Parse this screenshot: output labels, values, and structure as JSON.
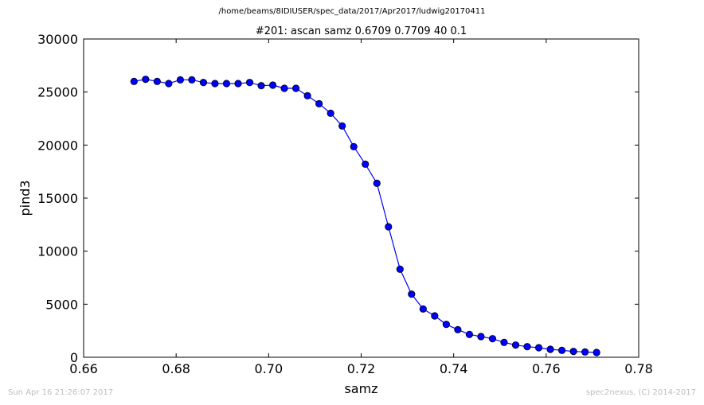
{
  "header": {
    "path": "/home/beams/8IDIUSER/spec_data/2017/Apr2017/ludwig20170411"
  },
  "footer": {
    "timestamp": "Sun Apr 16 21:26:07 2017",
    "credit": "spec2nexus, (C) 2014-2017"
  },
  "chart_data": {
    "type": "line",
    "title": "#201: ascan  samz 0.6709 0.7709  40 0.1",
    "xlabel": "samz",
    "ylabel": "pind3",
    "xlim": [
      0.66,
      0.78
    ],
    "ylim": [
      0,
      30000
    ],
    "xticks": [
      0.66,
      0.68,
      0.7,
      0.72,
      0.74,
      0.76,
      0.78
    ],
    "yticks": [
      0,
      5000,
      10000,
      15000,
      20000,
      25000,
      30000
    ],
    "grid": false,
    "marker": "circle",
    "color": "#0000ff",
    "series": [
      {
        "x": [
          0.6709,
          0.6734,
          0.6759,
          0.6784,
          0.6809,
          0.6834,
          0.6859,
          0.6884,
          0.6909,
          0.6934,
          0.6959,
          0.6984,
          0.7009,
          0.7034,
          0.7059,
          0.7084,
          0.7109,
          0.7134,
          0.7159,
          0.7184,
          0.7209,
          0.7234,
          0.7259,
          0.7284,
          0.7309,
          0.7334,
          0.7359,
          0.7384,
          0.7409,
          0.7434,
          0.7459,
          0.7484,
          0.7509,
          0.7534,
          0.7559,
          0.7584,
          0.7609,
          0.7634,
          0.7659,
          0.7684,
          0.7709
        ],
        "y": [
          26000,
          26200,
          26000,
          25800,
          26150,
          26150,
          25900,
          25800,
          25800,
          25800,
          25900,
          25600,
          25650,
          25350,
          25350,
          24650,
          23900,
          23000,
          21800,
          19850,
          18200,
          16400,
          12300,
          8300,
          5950,
          4550,
          3900,
          3100,
          2600,
          2150,
          1950,
          1750,
          1400,
          1150,
          1000,
          900,
          750,
          650,
          550,
          500,
          450
        ]
      }
    ]
  }
}
